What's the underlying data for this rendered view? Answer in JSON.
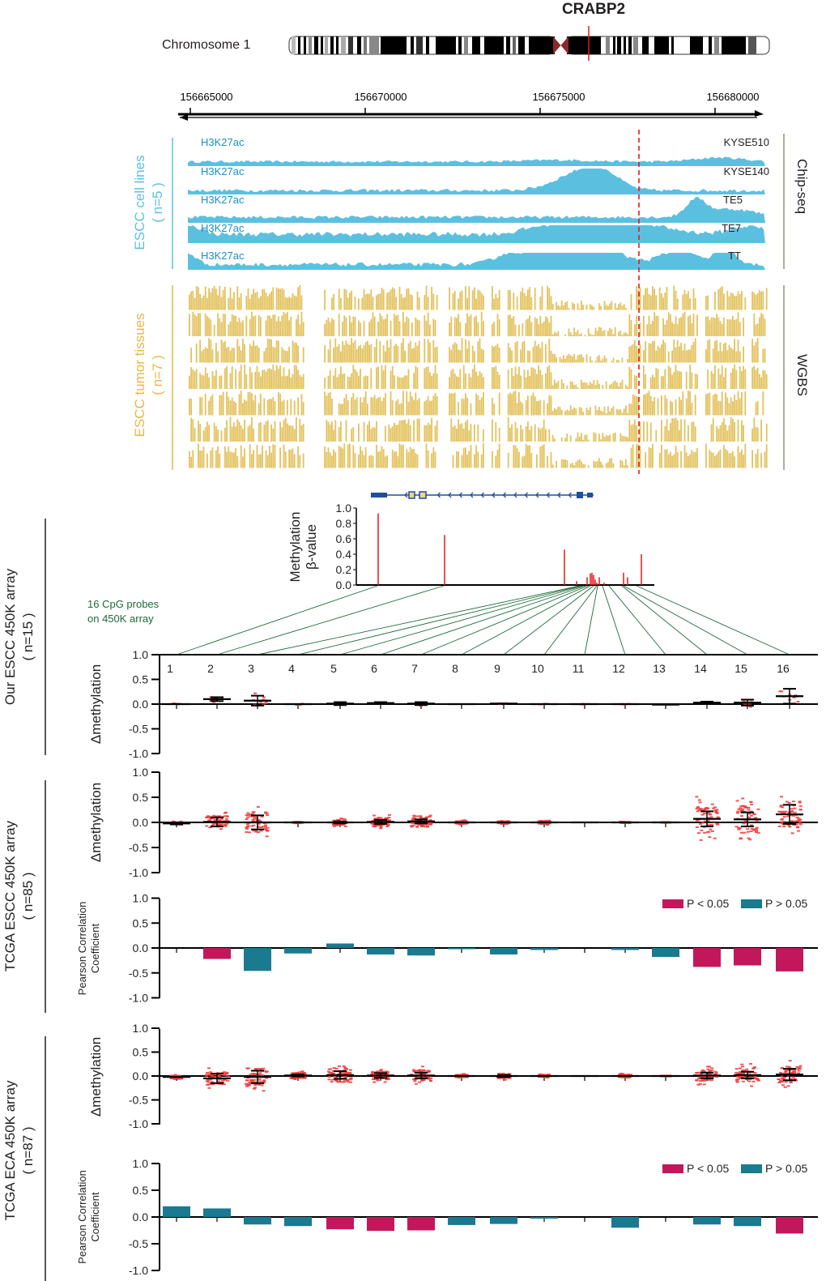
{
  "header": {
    "gene": "CRABP2",
    "chromosome_label": "Chromosome 1"
  },
  "coordinates": {
    "ticks": [
      "156665000",
      "156670000",
      "156675000",
      "156680000"
    ]
  },
  "chipseq": {
    "group_label": "ESCC cell lines",
    "group_n": "( n=5 )",
    "side_label": "Chip-seq",
    "tracks": [
      {
        "mark": "H3K27ac",
        "sample": "KYSE510"
      },
      {
        "mark": "H3K27ac",
        "sample": "KYSE140"
      },
      {
        "mark": "H3K27ac",
        "sample": "TE5"
      },
      {
        "mark": "H3K27ac",
        "sample": "TE7"
      },
      {
        "mark": "H3K27ac",
        "sample": "TT"
      }
    ],
    "color": "#5bc0e0"
  },
  "wgbs": {
    "group_label": "ESCC tumor tissues",
    "group_n": "( n=7 )",
    "side_label": "WGBS",
    "track_count": 7,
    "color": "#e3c25e"
  },
  "probe_note": {
    "line1": "16 CpG probes",
    "line2": "on 450K array"
  },
  "colors": {
    "sig": "#c2185b",
    "nonsig": "#1a7a8f",
    "probe_line": "#1e6b3a",
    "dot": "#f03a3a",
    "marker": "#e31a1c"
  },
  "row_labels": [
    {
      "line1": "Our ESCC 450K array",
      "line2": "( n=15 )"
    },
    {
      "line1": "TCGA ESCC 450K array",
      "line2": "( n=85 )"
    },
    {
      "line1": "TCGA ECA 450K array",
      "line2": "( n=87 )"
    }
  ],
  "legend": {
    "sig": "P < 0.05",
    "nonsig": "P > 0.05"
  },
  "chart_data": [
    {
      "id": "beta",
      "type": "bar",
      "title": "",
      "ylabel": "Methylation β-value",
      "ylim": [
        0,
        1.0
      ],
      "yticks": [
        "1.0",
        "0.8",
        "0.6",
        "0.4",
        "0.2",
        "0.0"
      ],
      "values": [
        0.93,
        0.65,
        0.46,
        0.05,
        0.1,
        0.15,
        0.16,
        0.13,
        0.07,
        0.03,
        0.1,
        0.03,
        0.16,
        0.1,
        0.4
      ]
    },
    {
      "id": "our_escc",
      "type": "scatter",
      "ylabel": "Δmethylation",
      "ylim": [
        -1.0,
        1.0
      ],
      "yticks": [
        "1.0",
        "0.5",
        "0.0",
        "-0.5",
        "-1.0"
      ],
      "categories": [
        "1",
        "2",
        "3",
        "4",
        "5",
        "6",
        "7",
        "8",
        "9",
        "10",
        "11",
        "12",
        "13",
        "14",
        "15",
        "16"
      ],
      "mean": [
        0.0,
        0.1,
        0.07,
        0.0,
        0.01,
        0.02,
        0.01,
        0.0,
        0.01,
        0.0,
        0.0,
        0.0,
        -0.01,
        0.03,
        0.03,
        0.16
      ],
      "sd": [
        0.01,
        0.04,
        0.1,
        0.01,
        0.03,
        0.02,
        0.03,
        0.0,
        0.01,
        0.01,
        0.01,
        0.01,
        0.0,
        0.02,
        0.06,
        0.15
      ],
      "spread": [
        0.02,
        0.07,
        0.15,
        0.02,
        0.05,
        0.03,
        0.05,
        0.0,
        0.02,
        0.01,
        0.01,
        0.01,
        0.0,
        0.04,
        0.1,
        0.22
      ]
    },
    {
      "id": "tcga_escc_delta",
      "type": "scatter",
      "ylabel": "Δmethylation",
      "ylim": [
        -1.0,
        1.0
      ],
      "yticks": [
        "1.0",
        "0.5",
        "0.0",
        "-0.5",
        "-1.0"
      ],
      "categories": [
        "1",
        "2",
        "3",
        "4",
        "5",
        "6",
        "7",
        "8",
        "9",
        "10",
        "11",
        "12",
        "13",
        "14",
        "15",
        "16"
      ],
      "mean": [
        -0.02,
        0.01,
        0.0,
        0.0,
        0.0,
        0.01,
        0.02,
        0.0,
        0.0,
        0.0,
        0.0,
        0.0,
        0.0,
        0.07,
        0.06,
        0.16
      ],
      "sd": [
        0.02,
        0.09,
        0.14,
        0.01,
        0.02,
        0.04,
        0.04,
        0.0,
        0.01,
        0.01,
        0.0,
        0.01,
        0.0,
        0.15,
        0.14,
        0.19
      ],
      "spread": [
        0.04,
        0.2,
        0.35,
        0.02,
        0.08,
        0.15,
        0.2,
        0.05,
        0.05,
        0.05,
        0.0,
        0.02,
        0.01,
        0.5,
        0.45,
        0.45
      ]
    },
    {
      "id": "tcga_escc_pearson",
      "type": "bar",
      "ylabel": "Pearson Correlation Coefficient",
      "ylim": [
        -1.0,
        1.0
      ],
      "yticks": [
        "1.0",
        "0.5",
        "0.0",
        "-0.5",
        "-1.0"
      ],
      "categories": [
        "1",
        "2",
        "3",
        "4",
        "5",
        "6",
        "7",
        "8",
        "9",
        "10",
        "11",
        "12",
        "13",
        "14",
        "15",
        "16"
      ],
      "values": [
        0.0,
        -0.22,
        -0.46,
        -0.11,
        0.09,
        -0.13,
        -0.15,
        -0.02,
        -0.13,
        -0.04,
        0.0,
        -0.04,
        -0.18,
        -0.38,
        -0.35,
        -0.47
      ],
      "significant": [
        false,
        true,
        false,
        false,
        false,
        false,
        false,
        false,
        false,
        false,
        false,
        false,
        false,
        true,
        true,
        true
      ],
      "legend": "top-right"
    },
    {
      "id": "tcga_eca_delta",
      "type": "scatter",
      "ylabel": "Δmethylation",
      "ylim": [
        -1.0,
        1.0
      ],
      "yticks": [
        "1.0",
        "0.5",
        "0.0",
        "-0.5",
        "-1.0"
      ],
      "categories": [
        "1",
        "2",
        "3",
        "4",
        "5",
        "6",
        "7",
        "8",
        "9",
        "10",
        "11",
        "12",
        "13",
        "14",
        "15",
        "16"
      ],
      "mean": [
        -0.02,
        -0.05,
        -0.02,
        0.01,
        0.02,
        0.01,
        0.01,
        0.0,
        0.0,
        0.0,
        0.0,
        0.0,
        0.0,
        0.01,
        0.02,
        0.03
      ],
      "sd": [
        0.01,
        0.1,
        0.13,
        0.02,
        0.08,
        0.05,
        0.06,
        0.01,
        0.02,
        0.01,
        0.0,
        0.01,
        0.0,
        0.06,
        0.07,
        0.12
      ],
      "spread": [
        0.05,
        0.22,
        0.3,
        0.1,
        0.25,
        0.15,
        0.2,
        0.05,
        0.08,
        0.04,
        0.0,
        0.06,
        0.01,
        0.2,
        0.25,
        0.3
      ]
    },
    {
      "id": "tcga_eca_pearson",
      "type": "bar",
      "ylabel": "Pearson Correlation Coefficient",
      "ylim": [
        -1.0,
        1.0
      ],
      "yticks": [
        "1.0",
        "0.5",
        "0.0",
        "-0.5",
        "-1.0"
      ],
      "categories": [
        "1",
        "2",
        "3",
        "4",
        "5",
        "6",
        "7",
        "8",
        "9",
        "10",
        "11",
        "12",
        "13",
        "14",
        "15",
        "16"
      ],
      "values": [
        0.2,
        0.16,
        -0.14,
        -0.17,
        -0.23,
        -0.26,
        -0.25,
        -0.15,
        -0.13,
        -0.03,
        0.0,
        -0.2,
        0.0,
        -0.14,
        -0.17,
        -0.31
      ],
      "significant": [
        false,
        false,
        false,
        false,
        true,
        true,
        true,
        false,
        false,
        false,
        false,
        false,
        false,
        false,
        false,
        true
      ],
      "legend": "top-right"
    }
  ]
}
